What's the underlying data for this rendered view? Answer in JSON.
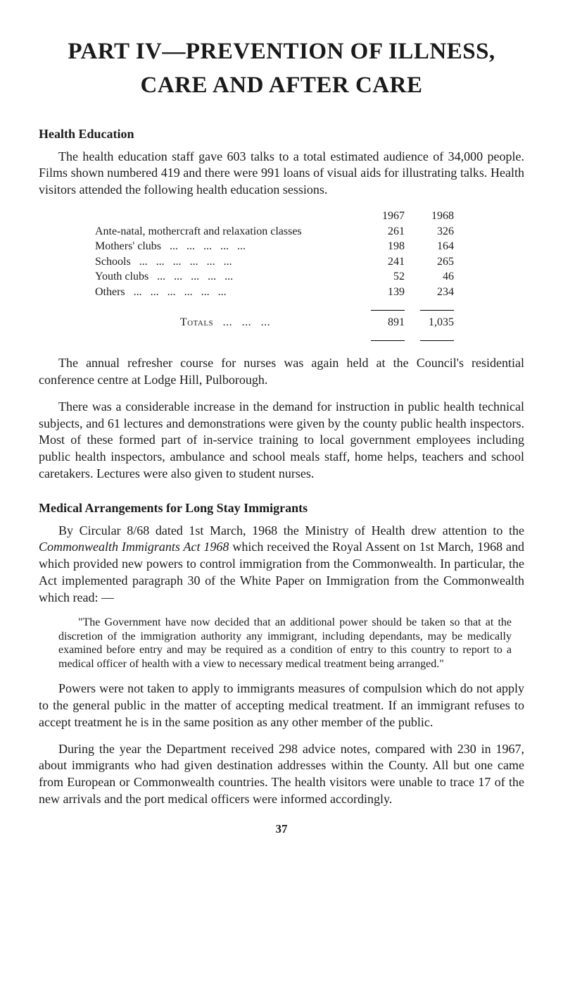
{
  "title": "PART IV—PREVENTION OF ILLNESS, CARE AND AFTER CARE",
  "section1": {
    "heading": "Health Education",
    "para1": "The health education staff gave 603 talks to a total estimated audience of 34,000 people. Films shown numbered 419 and there were 991 loans of visual aids for illustrating talks. Health visitors attended the following health education sessions.",
    "para2": "The annual refresher course for nurses was again held at the Council's residential conference centre at Lodge Hill, Pulborough.",
    "para3": "There was a considerable increase in the demand for instruction in public health technical subjects, and 61 lectures and demonstrations were given by the county public health inspectors. Most of these formed part of in-service training to local government employees including public health inspectors, ambulance and school meals staff, home helps, teachers and school caretakers. Lectures were also given to student nurses."
  },
  "table": {
    "year1": "1967",
    "year2": "1968",
    "rows": [
      {
        "label": "Ante-natal, mothercraft and relaxation classes",
        "v1": "261",
        "v2": "326"
      },
      {
        "label": "Mothers' clubs",
        "v1": "198",
        "v2": "164"
      },
      {
        "label": "Schools",
        "v1": "241",
        "v2": "265"
      },
      {
        "label": "Youth clubs",
        "v1": "52",
        "v2": "46"
      },
      {
        "label": "Others",
        "v1": "139",
        "v2": "234"
      }
    ],
    "totals_label": "Totals",
    "total1": "891",
    "total2": "1,035"
  },
  "section2": {
    "heading": "Medical Arrangements for Long Stay Immigrants",
    "para1a": "By Circular 8/68 dated 1st March, 1968 the Ministry of Health drew attention to the ",
    "para1_italic": "Commonwealth Immigrants Act 1968",
    "para1b": " which received the Royal Assent on 1st March, 1968 and which provided new powers to control immigration from the Commonwealth. In particular, the Act implemented paragraph 30 of the White Paper on Immigration from the Commonwealth which read: —",
    "quote": "\"The Government have now decided that an additional power should be taken so that at the discretion of the immigration authority any immigrant, including dependants, may be medically examined before entry and may be required as a condition of entry to this country to report to a medical officer of health with a view to necessary medical treatment being arranged.\"",
    "para2": "Powers were not taken to apply to immigrants measures of compulsion which do not apply to the general public in the matter of accepting medical treatment. If an immigrant refuses to accept treatment he is in the same position as any other member of the public.",
    "para3": "During the year the Department received 298 advice notes, compared with 230 in 1967, about immigrants who had given destination addresses within the County. All but one came from European or Commonwealth countries. The health visitors were unable to trace 17 of the new arrivals and the port medical officers were informed accordingly."
  },
  "page_number": "37"
}
